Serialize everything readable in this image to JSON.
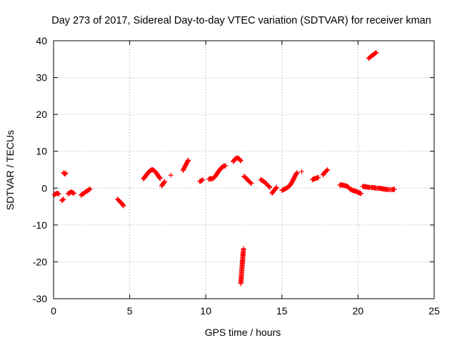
{
  "chart_data": {
    "type": "scatter",
    "title": "Day 273 of 2017, Sidereal Day-to-day VTEC variation (SDTVAR) for receiver kman",
    "xlabel": "GPS time / hours",
    "ylabel": "SDTVAR / TECUs",
    "xlim": [
      0,
      25
    ],
    "ylim": [
      -30,
      40
    ],
    "xticks": [
      0,
      5,
      10,
      15,
      20,
      25
    ],
    "yticks": [
      -30,
      -20,
      -10,
      0,
      10,
      20,
      30,
      40
    ],
    "grid": true,
    "marker": "+",
    "color": "#ff0000",
    "series": [
      {
        "name": "SDTVAR",
        "segments": [
          [
            [
              0.05,
              -1.8
            ],
            [
              0.15,
              -1.5
            ],
            [
              0.25,
              -1.4
            ],
            [
              0.35,
              -1.6
            ]
          ],
          [
            [
              0.55,
              -3.4
            ],
            [
              0.6,
              -3.1
            ],
            [
              0.65,
              -3.0
            ]
          ],
          [
            [
              0.65,
              4.2
            ],
            [
              0.7,
              4.0
            ],
            [
              0.75,
              3.8
            ],
            [
              0.8,
              4.1
            ]
          ],
          [
            [
              0.95,
              -1.5
            ],
            [
              1.05,
              -1.3
            ],
            [
              1.15,
              -1.0
            ],
            [
              1.25,
              -1.2
            ],
            [
              1.35,
              -1.4
            ]
          ],
          [
            [
              1.8,
              -1.9
            ],
            [
              1.9,
              -1.6
            ],
            [
              2.0,
              -1.4
            ],
            [
              2.1,
              -1.0
            ],
            [
              2.2,
              -0.8
            ],
            [
              2.3,
              -0.5
            ],
            [
              2.4,
              -0.2
            ]
          ],
          [
            [
              4.2,
              -3.0
            ],
            [
              4.3,
              -3.4
            ],
            [
              4.4,
              -3.8
            ],
            [
              4.5,
              -4.3
            ],
            [
              4.6,
              -4.8
            ]
          ],
          [
            [
              5.9,
              2.5
            ],
            [
              6.0,
              3.0
            ],
            [
              6.1,
              3.6
            ],
            [
              6.2,
              4.1
            ],
            [
              6.3,
              4.6
            ],
            [
              6.4,
              4.9
            ],
            [
              6.5,
              5.0
            ],
            [
              6.6,
              4.8
            ],
            [
              6.7,
              4.4
            ],
            [
              6.8,
              3.8
            ],
            [
              6.9,
              3.2
            ],
            [
              7.0,
              2.6
            ]
          ],
          [
            [
              7.1,
              0.6
            ],
            [
              7.2,
              1.2
            ],
            [
              7.3,
              1.8
            ]
          ],
          [
            [
              7.7,
              3.5
            ]
          ],
          [
            [
              8.5,
              4.8
            ],
            [
              8.6,
              5.6
            ],
            [
              8.7,
              6.4
            ],
            [
              8.8,
              7.2
            ],
            [
              8.85,
              7.6
            ]
          ],
          [
            [
              9.6,
              1.8
            ],
            [
              9.7,
              2.0
            ],
            [
              9.8,
              2.3
            ]
          ],
          [
            [
              10.2,
              2.4
            ],
            [
              10.3,
              2.6
            ],
            [
              10.4,
              2.5
            ],
            [
              10.5,
              2.7
            ],
            [
              10.6,
              3.1
            ],
            [
              10.7,
              3.7
            ],
            [
              10.8,
              4.3
            ],
            [
              10.9,
              4.9
            ],
            [
              11.0,
              5.4
            ],
            [
              11.1,
              5.8
            ],
            [
              11.2,
              6.0
            ],
            [
              11.3,
              6.1
            ]
          ],
          [
            [
              11.8,
              7.2
            ],
            [
              11.9,
              7.8
            ],
            [
              12.0,
              8.1
            ],
            [
              12.1,
              8.2
            ],
            [
              12.2,
              7.9
            ],
            [
              12.3,
              7.4
            ]
          ],
          [
            [
              12.3,
              -25.9
            ],
            [
              12.32,
              -24.8
            ],
            [
              12.34,
              -23.8
            ],
            [
              12.36,
              -22.6
            ],
            [
              12.38,
              -21.5
            ],
            [
              12.4,
              -20.4
            ],
            [
              12.42,
              -19.4
            ],
            [
              12.44,
              -18.3
            ],
            [
              12.46,
              -17.3
            ],
            [
              12.48,
              -16.4
            ]
          ],
          [
            [
              12.5,
              3.2
            ],
            [
              12.6,
              2.9
            ],
            [
              12.7,
              2.5
            ],
            [
              12.8,
              2.0
            ],
            [
              12.9,
              1.6
            ],
            [
              13.0,
              1.3
            ]
          ],
          [
            [
              13.6,
              2.3
            ],
            [
              13.7,
              2.1
            ],
            [
              13.8,
              1.8
            ],
            [
              13.9,
              1.5
            ],
            [
              14.0,
              1.1
            ],
            [
              14.1,
              0.7
            ],
            [
              14.2,
              0.2
            ]
          ],
          [
            [
              14.35,
              -1.4
            ],
            [
              14.45,
              -0.8
            ],
            [
              14.55,
              -0.3
            ],
            [
              14.65,
              0.2
            ]
          ],
          [
            [
              15.0,
              -0.6
            ],
            [
              15.1,
              -0.4
            ],
            [
              15.2,
              -0.2
            ],
            [
              15.3,
              0.0
            ],
            [
              15.4,
              0.3
            ],
            [
              15.5,
              0.6
            ],
            [
              15.6,
              1.2
            ],
            [
              15.7,
              1.9
            ],
            [
              15.8,
              2.8
            ],
            [
              15.9,
              3.6
            ],
            [
              16.0,
              4.2
            ]
          ],
          [
            [
              16.3,
              4.5
            ]
          ],
          [
            [
              17.0,
              2.3
            ],
            [
              17.1,
              2.5
            ],
            [
              17.2,
              2.6
            ],
            [
              17.3,
              2.8
            ],
            [
              17.4,
              2.9
            ]
          ],
          [
            [
              17.7,
              3.6
            ],
            [
              17.8,
              4.2
            ],
            [
              17.9,
              4.6
            ],
            [
              18.0,
              5.0
            ]
          ],
          [
            [
              18.8,
              0.8
            ],
            [
              18.9,
              0.9
            ],
            [
              19.0,
              0.8
            ],
            [
              19.1,
              0.7
            ],
            [
              19.2,
              0.6
            ],
            [
              19.3,
              0.5
            ],
            [
              19.4,
              0.1
            ],
            [
              19.5,
              -0.3
            ],
            [
              19.6,
              -0.5
            ],
            [
              19.7,
              -0.7
            ],
            [
              19.8,
              -0.8
            ],
            [
              19.9,
              -0.9
            ],
            [
              20.0,
              -1.1
            ],
            [
              20.1,
              -1.3
            ],
            [
              20.2,
              -1.5
            ]
          ],
          [
            [
              20.3,
              0.5
            ],
            [
              20.45,
              0.4
            ],
            [
              20.6,
              0.3
            ],
            [
              20.75,
              0.2
            ],
            [
              20.9,
              0.2
            ],
            [
              21.05,
              0.1
            ],
            [
              21.2,
              0.0
            ],
            [
              21.35,
              0.0
            ],
            [
              21.5,
              -0.1
            ],
            [
              21.65,
              -0.2
            ],
            [
              21.8,
              -0.3
            ],
            [
              21.95,
              -0.4
            ],
            [
              22.1,
              -0.4
            ],
            [
              22.25,
              -0.4
            ],
            [
              22.4,
              -0.3
            ]
          ],
          [
            [
              20.7,
              35.2
            ],
            [
              20.8,
              35.6
            ],
            [
              20.9,
              35.9
            ],
            [
              21.0,
              36.2
            ],
            [
              21.1,
              36.5
            ],
            [
              21.2,
              36.8
            ]
          ]
        ]
      }
    ]
  }
}
